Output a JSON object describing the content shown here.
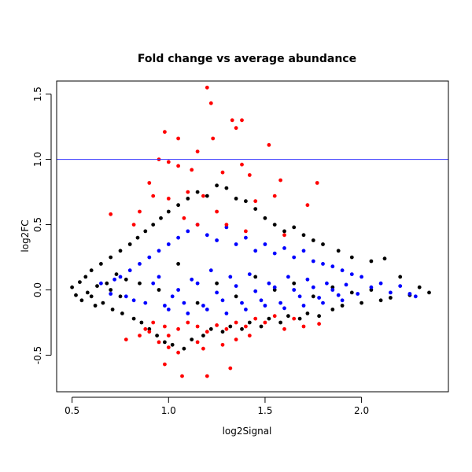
{
  "chart_data": {
    "type": "scatter",
    "title": "Fold change vs average abundance",
    "xlabel": "log2Signal",
    "ylabel": "log2FC",
    "xlim": [
      0.42,
      2.45
    ],
    "ylim": [
      -0.78,
      1.6
    ],
    "x_ticks": [
      0.5,
      1.0,
      1.5,
      2.0
    ],
    "x_tick_labels": [
      "0.5",
      "1.0",
      "1.5",
      "2.0"
    ],
    "y_ticks": [
      -0.5,
      0.0,
      0.5,
      1.0,
      1.5
    ],
    "y_tick_labels": [
      "-0.5",
      "0.0",
      "0.5",
      "1.0",
      "1.5"
    ],
    "hline": {
      "y": 1.0,
      "color": "#3333ff"
    },
    "grid": false,
    "legend": "none",
    "colors": {
      "black_series": "#000000",
      "blue_series": "#0000ff",
      "red_series": "#ff0000"
    },
    "series": [
      {
        "color": "#000000",
        "points": [
          [
            0.5,
            0.02
          ],
          [
            0.52,
            -0.04
          ],
          [
            0.54,
            0.06
          ],
          [
            0.55,
            -0.08
          ],
          [
            0.57,
            0.1
          ],
          [
            0.58,
            -0.02
          ],
          [
            0.6,
            0.15
          ],
          [
            0.62,
            -0.12
          ],
          [
            0.63,
            0.03
          ],
          [
            0.65,
            0.2
          ],
          [
            0.66,
            -0.1
          ],
          [
            0.68,
            0.05
          ],
          [
            0.7,
            0.25
          ],
          [
            0.71,
            -0.15
          ],
          [
            0.73,
            0.12
          ],
          [
            0.75,
            0.3
          ],
          [
            0.76,
            -0.18
          ],
          [
            0.78,
            0.08
          ],
          [
            0.8,
            0.35
          ],
          [
            0.82,
            -0.22
          ],
          [
            0.84,
            0.4
          ],
          [
            0.86,
            -0.25
          ],
          [
            0.88,
            0.45
          ],
          [
            0.9,
            -0.3
          ],
          [
            0.92,
            0.5
          ],
          [
            0.94,
            -0.35
          ],
          [
            0.96,
            0.55
          ],
          [
            0.98,
            -0.4
          ],
          [
            1.0,
            0.6
          ],
          [
            1.02,
            -0.42
          ],
          [
            1.05,
            0.65
          ],
          [
            1.08,
            -0.45
          ],
          [
            1.1,
            0.7
          ],
          [
            1.12,
            -0.38
          ],
          [
            1.15,
            0.75
          ],
          [
            1.18,
            -0.35
          ],
          [
            1.2,
            0.72
          ],
          [
            1.22,
            -0.3
          ],
          [
            1.25,
            0.8
          ],
          [
            1.28,
            -0.32
          ],
          [
            1.3,
            0.78
          ],
          [
            1.32,
            -0.28
          ],
          [
            1.35,
            0.7
          ],
          [
            1.38,
            -0.3
          ],
          [
            1.4,
            0.68
          ],
          [
            1.42,
            -0.25
          ],
          [
            1.45,
            0.62
          ],
          [
            1.48,
            -0.28
          ],
          [
            1.5,
            0.55
          ],
          [
            1.52,
            -0.22
          ],
          [
            1.55,
            0.5
          ],
          [
            1.58,
            -0.25
          ],
          [
            1.6,
            0.45
          ],
          [
            1.62,
            -0.2
          ],
          [
            1.65,
            0.48
          ],
          [
            1.68,
            -0.22
          ],
          [
            1.7,
            0.42
          ],
          [
            1.72,
            -0.18
          ],
          [
            1.75,
            0.38
          ],
          [
            1.78,
            -0.2
          ],
          [
            1.8,
            0.35
          ],
          [
            1.85,
            -0.15
          ],
          [
            1.88,
            0.3
          ],
          [
            1.9,
            -0.12
          ],
          [
            1.95,
            0.25
          ],
          [
            2.0,
            -0.1
          ],
          [
            2.05,
            0.22
          ],
          [
            2.1,
            -0.08
          ],
          [
            2.12,
            0.24
          ],
          [
            2.15,
            -0.06
          ],
          [
            2.2,
            0.1
          ],
          [
            2.25,
            -0.04
          ],
          [
            2.3,
            0.02
          ],
          [
            2.35,
            -0.02
          ],
          [
            1.05,
            0.2
          ],
          [
            1.15,
            -0.1
          ],
          [
            1.25,
            0.05
          ],
          [
            1.35,
            -0.05
          ],
          [
            1.45,
            0.1
          ],
          [
            1.55,
            0.0
          ],
          [
            0.95,
            0.0
          ],
          [
            0.85,
            0.05
          ],
          [
            0.75,
            -0.05
          ],
          [
            1.65,
            0.05
          ],
          [
            1.75,
            -0.05
          ],
          [
            1.85,
            0.02
          ],
          [
            1.95,
            -0.02
          ],
          [
            2.05,
            0.0
          ],
          [
            0.6,
            -0.05
          ],
          [
            0.7,
            0.0
          ]
        ]
      },
      {
        "color": "#0000ff",
        "points": [
          [
            0.75,
            0.1
          ],
          [
            0.78,
            -0.05
          ],
          [
            0.8,
            0.15
          ],
          [
            0.82,
            -0.08
          ],
          [
            0.85,
            0.2
          ],
          [
            0.88,
            -0.1
          ],
          [
            0.9,
            0.25
          ],
          [
            0.92,
            0.05
          ],
          [
            0.95,
            0.3
          ],
          [
            0.98,
            -0.12
          ],
          [
            1.0,
            0.35
          ],
          [
            1.02,
            -0.05
          ],
          [
            1.05,
            0.4
          ],
          [
            1.08,
            -0.1
          ],
          [
            1.1,
            0.45
          ],
          [
            1.12,
            0.08
          ],
          [
            1.15,
            0.5
          ],
          [
            1.18,
            -0.12
          ],
          [
            1.2,
            0.42
          ],
          [
            1.22,
            0.15
          ],
          [
            1.25,
            0.38
          ],
          [
            1.28,
            -0.08
          ],
          [
            1.3,
            0.48
          ],
          [
            1.32,
            0.1
          ],
          [
            1.35,
            0.35
          ],
          [
            1.38,
            -0.1
          ],
          [
            1.4,
            0.4
          ],
          [
            1.42,
            0.12
          ],
          [
            1.45,
            0.3
          ],
          [
            1.48,
            -0.08
          ],
          [
            1.5,
            0.35
          ],
          [
            1.52,
            0.05
          ],
          [
            1.55,
            0.28
          ],
          [
            1.58,
            -0.1
          ],
          [
            1.6,
            0.32
          ],
          [
            1.62,
            0.1
          ],
          [
            1.65,
            0.25
          ],
          [
            1.68,
            -0.05
          ],
          [
            1.7,
            0.3
          ],
          [
            1.72,
            0.08
          ],
          [
            1.75,
            0.22
          ],
          [
            1.78,
            -0.06
          ],
          [
            1.8,
            0.2
          ],
          [
            1.82,
            0.05
          ],
          [
            1.85,
            0.18
          ],
          [
            1.88,
            -0.04
          ],
          [
            1.9,
            0.15
          ],
          [
            1.92,
            0.04
          ],
          [
            1.95,
            0.12
          ],
          [
            1.98,
            -0.03
          ],
          [
            2.0,
            0.1
          ],
          [
            2.05,
            0.02
          ],
          [
            2.1,
            0.05
          ],
          [
            2.15,
            -0.02
          ],
          [
            2.2,
            0.03
          ],
          [
            2.25,
            -0.03
          ],
          [
            2.28,
            -0.05
          ],
          [
            0.65,
            0.05
          ],
          [
            0.7,
            -0.03
          ],
          [
            0.72,
            0.08
          ],
          [
            1.0,
            -0.15
          ],
          [
            1.1,
            -0.18
          ],
          [
            1.2,
            -0.15
          ],
          [
            1.3,
            -0.18
          ],
          [
            1.4,
            -0.15
          ],
          [
            1.5,
            -0.12
          ],
          [
            1.6,
            -0.14
          ],
          [
            1.7,
            -0.12
          ],
          [
            1.8,
            -0.1
          ],
          [
            1.9,
            -0.08
          ],
          [
            1.05,
            0.0
          ],
          [
            1.15,
            0.05
          ],
          [
            1.25,
            -0.02
          ],
          [
            1.35,
            0.03
          ],
          [
            1.45,
            -0.01
          ],
          [
            1.55,
            0.02
          ],
          [
            1.65,
            0.0
          ],
          [
            1.75,
            0.02
          ],
          [
            1.85,
            0.0
          ],
          [
            0.95,
            0.1
          ]
        ]
      },
      {
        "color": "#ff0000",
        "points": [
          [
            1.2,
            1.55
          ],
          [
            1.22,
            1.43
          ],
          [
            1.33,
            1.3
          ],
          [
            1.38,
            1.3
          ],
          [
            1.35,
            1.24
          ],
          [
            1.52,
            1.11
          ],
          [
            0.98,
            1.21
          ],
          [
            1.05,
            1.16
          ],
          [
            1.23,
            1.16
          ],
          [
            1.15,
            1.06
          ],
          [
            0.95,
            1.0
          ],
          [
            1.0,
            0.98
          ],
          [
            1.05,
            0.95
          ],
          [
            1.12,
            0.92
          ],
          [
            1.28,
            0.9
          ],
          [
            1.38,
            0.96
          ],
          [
            1.42,
            0.88
          ],
          [
            1.58,
            0.84
          ],
          [
            1.77,
            0.82
          ],
          [
            0.9,
            0.82
          ],
          [
            0.92,
            0.72
          ],
          [
            1.0,
            0.7
          ],
          [
            1.1,
            0.75
          ],
          [
            1.18,
            0.72
          ],
          [
            1.25,
            0.6
          ],
          [
            1.45,
            0.68
          ],
          [
            1.55,
            0.72
          ],
          [
            1.72,
            0.65
          ],
          [
            0.85,
            0.6
          ],
          [
            1.08,
            0.55
          ],
          [
            1.15,
            0.5
          ],
          [
            1.3,
            0.5
          ],
          [
            1.4,
            0.45
          ],
          [
            1.6,
            0.42
          ],
          [
            0.7,
            0.58
          ],
          [
            0.82,
            0.5
          ],
          [
            0.88,
            -0.3
          ],
          [
            0.92,
            -0.25
          ],
          [
            0.98,
            -0.28
          ],
          [
            1.0,
            -0.35
          ],
          [
            1.05,
            -0.3
          ],
          [
            1.1,
            -0.25
          ],
          [
            1.15,
            -0.28
          ],
          [
            1.2,
            -0.32
          ],
          [
            1.25,
            -0.27
          ],
          [
            1.3,
            -0.3
          ],
          [
            1.35,
            -0.25
          ],
          [
            1.4,
            -0.28
          ],
          [
            1.45,
            -0.22
          ],
          [
            1.5,
            -0.25
          ],
          [
            1.55,
            -0.2
          ],
          [
            1.65,
            -0.22
          ],
          [
            1.7,
            -0.28
          ],
          [
            1.78,
            -0.26
          ],
          [
            0.78,
            -0.38
          ],
          [
            0.85,
            -0.35
          ],
          [
            0.95,
            -0.4
          ],
          [
            1.0,
            -0.44
          ],
          [
            0.98,
            -0.57
          ],
          [
            1.07,
            -0.66
          ],
          [
            1.2,
            -0.66
          ],
          [
            1.32,
            -0.6
          ],
          [
            1.05,
            -0.48
          ],
          [
            1.18,
            -0.45
          ],
          [
            1.28,
            -0.42
          ],
          [
            1.35,
            -0.38
          ],
          [
            1.42,
            -0.35
          ],
          [
            1.15,
            -0.4
          ],
          [
            0.9,
            -0.32
          ],
          [
            1.6,
            -0.3
          ]
        ]
      }
    ]
  }
}
